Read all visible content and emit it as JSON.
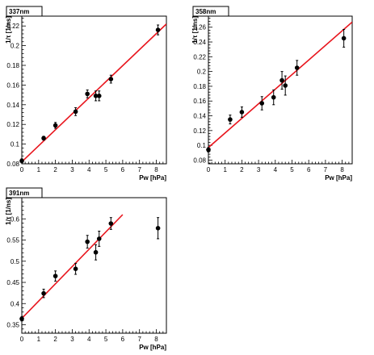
{
  "chart_data": [
    {
      "type": "scatter",
      "title": "337nm",
      "xlabel": "Pw [hPa]",
      "ylabel": "1/τ [1/ns]",
      "xlim": [
        0,
        8.6
      ],
      "ylim": [
        0.08,
        0.23
      ],
      "xticks": [
        0,
        1,
        2,
        3,
        4,
        5,
        6,
        7,
        8
      ],
      "yticks": [
        0.08,
        0.1,
        0.12,
        0.14,
        0.16,
        0.18,
        0.2,
        0.22
      ],
      "yticklabels": [
        "0.08",
        "0.1",
        "0.12",
        "0.14",
        "0.16",
        "0.18",
        "0.2",
        "0.22"
      ],
      "grid": false,
      "series": [
        {
          "x": [
            0.0,
            1.3,
            2.0,
            3.2,
            3.9,
            4.4,
            4.6,
            5.3,
            8.1
          ],
          "y": [
            0.083,
            0.106,
            0.119,
            0.133,
            0.151,
            0.149,
            0.149,
            0.166,
            0.216
          ],
          "yerr": [
            0.002,
            0.002,
            0.003,
            0.004,
            0.004,
            0.005,
            0.005,
            0.004,
            0.005
          ],
          "color": "#000000"
        }
      ],
      "fit_line": {
        "x": [
          0,
          8.6
        ],
        "y": [
          0.082,
          0.222
        ],
        "color": "#e8141c"
      }
    },
    {
      "type": "scatter",
      "title": "358nm",
      "xlabel": "Pw [hPa]",
      "ylabel": "1/τ [1/ns]",
      "xlim": [
        0,
        8.6
      ],
      "ylim": [
        0.075,
        0.275
      ],
      "xticks": [
        0,
        1,
        2,
        3,
        4,
        5,
        6,
        7,
        8
      ],
      "yticks": [
        0.08,
        0.1,
        0.12,
        0.14,
        0.16,
        0.18,
        0.2,
        0.22,
        0.24,
        0.26
      ],
      "yticklabels": [
        "0.08",
        "0.1",
        "0.12",
        "0.14",
        "0.16",
        "0.18",
        "0.2",
        "0.22",
        "0.24",
        "0.26"
      ],
      "grid": false,
      "series": [
        {
          "x": [
            0.0,
            1.3,
            2.0,
            3.2,
            3.9,
            4.4,
            4.6,
            5.3,
            8.1
          ],
          "y": [
            0.094,
            0.135,
            0.145,
            0.157,
            0.165,
            0.188,
            0.181,
            0.205,
            0.245
          ],
          "yerr": [
            0.003,
            0.006,
            0.007,
            0.009,
            0.01,
            0.012,
            0.013,
            0.01,
            0.012
          ],
          "color": "#000000"
        }
      ],
      "fit_line": {
        "x": [
          0,
          8.6
        ],
        "y": [
          0.097,
          0.267
        ],
        "color": "#e8141c"
      }
    },
    {
      "type": "scatter",
      "title": "391nm",
      "xlabel": "Pw [hPa]",
      "ylabel": "1/τ [1/ns]",
      "xlim": [
        0,
        8.6
      ],
      "ylim": [
        0.33,
        0.65
      ],
      "xticks": [
        0,
        1,
        2,
        3,
        4,
        5,
        6,
        7,
        8
      ],
      "yticks": [
        0.35,
        0.4,
        0.45,
        0.5,
        0.55,
        0.6
      ],
      "yticklabels": [
        "0.35",
        "0.4",
        "0.45",
        "0.5",
        "0.55",
        "0.6"
      ],
      "grid": false,
      "series": [
        {
          "x": [
            0.0,
            1.3,
            2.0,
            3.2,
            3.9,
            4.4,
            4.6,
            5.3,
            8.1
          ],
          "y": [
            0.364,
            0.424,
            0.465,
            0.482,
            0.546,
            0.521,
            0.553,
            0.589,
            0.578
          ],
          "yerr": [
            0.005,
            0.01,
            0.012,
            0.013,
            0.015,
            0.018,
            0.018,
            0.014,
            0.025
          ],
          "color": "#000000"
        }
      ],
      "fit_line": {
        "x": [
          0,
          6.0
        ],
        "y": [
          0.365,
          0.61
        ],
        "color": "#e8141c"
      }
    }
  ]
}
